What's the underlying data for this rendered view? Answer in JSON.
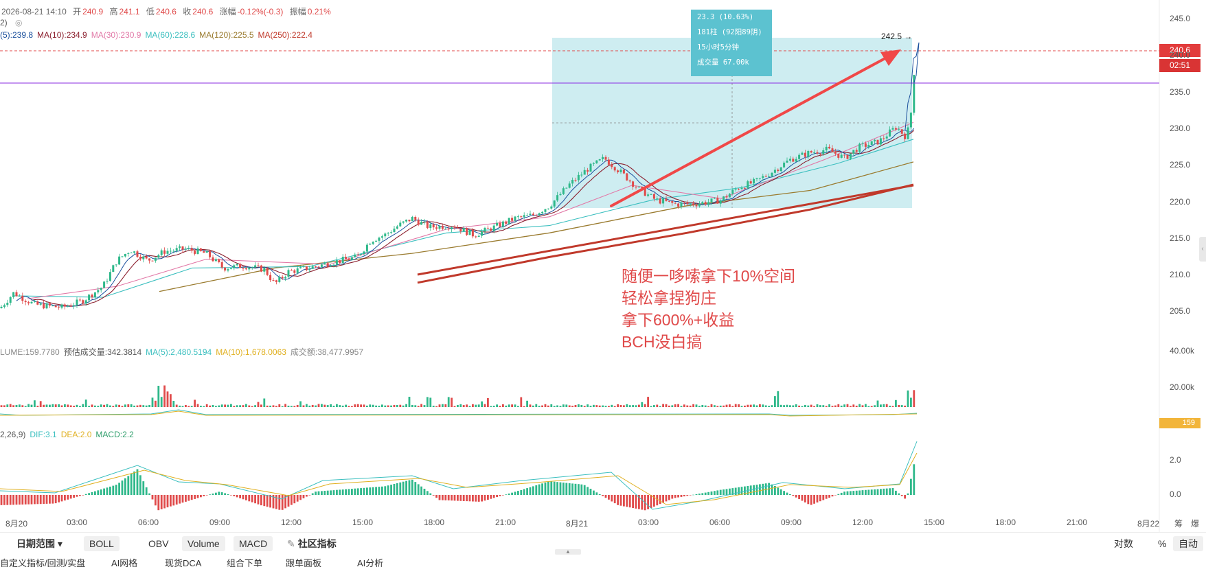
{
  "header": {
    "datetime": "2026-08-21 14:10",
    "open_label": "开",
    "open": "240.9",
    "high_label": "高",
    "high": "241.1",
    "low_label": "低",
    "low": "240.6",
    "close_label": "收",
    "close": "240.6",
    "change_label": "涨幅",
    "change": "-0.12%(-0.3)",
    "amplitude_label": "振幅",
    "amplitude": "0.21%",
    "sub_label": "2)"
  },
  "ma_legend": [
    {
      "text": "(5):239.8",
      "color": "#1a4f9c"
    },
    {
      "text": "MA(10):234.9",
      "color": "#8b1e2d"
    },
    {
      "text": "MA(30):230.9",
      "color": "#e27aa8"
    },
    {
      "text": "MA(60):228.6",
      "color": "#3bbfbf"
    },
    {
      "text": "MA(120):225.5",
      "color": "#9a7b2f"
    },
    {
      "text": "MA(250):222.4",
      "color": "#c0392b"
    }
  ],
  "volume_legend": [
    {
      "text": "LUME:159.7780",
      "color": "#888888"
    },
    {
      "text": "预估成交量:342.3814",
      "color": "#555555"
    },
    {
      "text": "MA(5):2,480.5194",
      "color": "#3bbfbf"
    },
    {
      "text": "MA(10):1,678.0063",
      "color": "#e0b020"
    },
    {
      "text": "成交额:38,477.9957",
      "color": "#888888"
    }
  ],
  "macd_legend": [
    {
      "text": "2,26,9)",
      "color": "#555555"
    },
    {
      "text": "DIF:3.1",
      "color": "#3bbfbf"
    },
    {
      "text": "DEA:2.0",
      "color": "#e0b020"
    },
    {
      "text": "MACD:2.2",
      "color": "#2e9e6b"
    }
  ],
  "tooltip": {
    "line1": "23.3 (10.63%)",
    "line2": "181柱 (92阳89阴)",
    "line3": "15小时5分钟",
    "line4": "成交量 67.00k"
  },
  "peak_label": "242.5 →",
  "price_tag": "240.6",
  "countdown_tag": "02:51",
  "volume_tag": "159",
  "annotation": [
    "随便一哆嗦拿下10%空间",
    "轻松拿捏狗庄",
    "拿下600%+收益",
    "BCH没白搞"
  ],
  "toolbar": {
    "date_range": "日期范围 ▾",
    "boll": "BOLL",
    "obv": "OBV",
    "volume": "Volume",
    "macd": "MACD",
    "community": "社区指标",
    "log": "对数",
    "percent": "%",
    "auto": "自动"
  },
  "bottom_tabs": [
    "自定义指标/回测/实盘",
    "AI网格",
    "现货DCA",
    "组合下单",
    "跟单面板",
    "AI分析"
  ],
  "colors": {
    "up": "#2eb88a",
    "down": "#e04a4a",
    "box": "#5cc2d0",
    "arrow": "#f04848",
    "hline": "#8a2be2"
  },
  "chart_data": {
    "type": "candlestick",
    "title": "",
    "xlabel": "",
    "ylabel": "",
    "ylim": [
      203,
      246
    ],
    "y_ticks": [
      "245.0",
      "240.0",
      "235.0",
      "230.0",
      "225.0",
      "220.0",
      "215.0",
      "210.0",
      "205.0"
    ],
    "x_ticks": [
      "8月20",
      "03:00",
      "06:00",
      "09:00",
      "12:00",
      "15:00",
      "18:00",
      "21:00",
      "8月21",
      "03:00",
      "06:00",
      "09:00",
      "12:00",
      "15:00",
      "18:00",
      "21:00",
      "8月22"
    ],
    "right_axis_extra": [
      "筹",
      "爆"
    ],
    "close_path": [
      [
        0,
        205.5
      ],
      [
        20,
        207.6
      ],
      [
        50,
        206.0
      ],
      [
        90,
        205.6
      ],
      [
        120,
        206.5
      ],
      [
        150,
        208.5
      ],
      [
        170,
        212.0
      ],
      [
        190,
        213.5
      ],
      [
        215,
        212.0
      ],
      [
        240,
        213.3
      ],
      [
        270,
        213.6
      ],
      [
        300,
        213.0
      ],
      [
        325,
        211.0
      ],
      [
        355,
        211.3
      ],
      [
        385,
        210.8
      ],
      [
        400,
        208.8
      ],
      [
        420,
        210.5
      ],
      [
        450,
        211.0
      ],
      [
        485,
        211.8
      ],
      [
        520,
        212.5
      ],
      [
        540,
        214.8
      ],
      [
        560,
        215.5
      ],
      [
        580,
        216.8
      ],
      [
        600,
        217.8
      ],
      [
        625,
        216.6
      ],
      [
        660,
        216.8
      ],
      [
        690,
        215.5
      ],
      [
        720,
        216.6
      ],
      [
        750,
        217.8
      ],
      [
        775,
        218.2
      ],
      [
        800,
        219.5
      ],
      [
        830,
        222.5
      ],
      [
        855,
        224.5
      ],
      [
        880,
        226.0
      ],
      [
        905,
        224.0
      ],
      [
        930,
        221.8
      ],
      [
        955,
        220.3
      ],
      [
        985,
        219.7
      ],
      [
        1015,
        219.8
      ],
      [
        1050,
        220.3
      ],
      [
        1075,
        222.0
      ],
      [
        1100,
        222.8
      ],
      [
        1125,
        224.2
      ],
      [
        1150,
        225.8
      ],
      [
        1180,
        226.8
      ],
      [
        1205,
        227.2
      ],
      [
        1230,
        226.0
      ],
      [
        1250,
        227.5
      ],
      [
        1280,
        228.3
      ],
      [
        1305,
        230.3
      ],
      [
        1318,
        229.0
      ],
      [
        1325,
        230.5
      ],
      [
        1331,
        238.0
      ],
      [
        1334,
        237.0
      ],
      [
        1337,
        241.5
      ]
    ],
    "series": [
      {
        "name": "MA(250)",
        "color": "#c0392b",
        "width": 3,
        "points": [
          [
            608,
            209.0
          ],
          [
            800,
            212.5
          ],
          [
            1000,
            215.8
          ],
          [
            1180,
            219.0
          ],
          [
            1330,
            222.4
          ]
        ]
      },
      {
        "name": "MA(120)",
        "color": "#9a7b2f",
        "width": 1.3,
        "points": [
          [
            232,
            207.8
          ],
          [
            400,
            211.0
          ],
          [
            600,
            213.0
          ],
          [
            800,
            215.8
          ],
          [
            1000,
            219.5
          ],
          [
            1180,
            221.6
          ],
          [
            1330,
            225.5
          ]
        ]
      },
      {
        "name": "MA(60)",
        "color": "#3bbfbf",
        "width": 1.1,
        "points": [
          [
            20,
            207.2
          ],
          [
            150,
            207.0
          ],
          [
            280,
            211.0
          ],
          [
            450,
            211.2
          ],
          [
            650,
            215.8
          ],
          [
            800,
            216.8
          ],
          [
            950,
            220.3
          ],
          [
            1080,
            222.0
          ],
          [
            1220,
            225.3
          ],
          [
            1330,
            228.6
          ]
        ]
      },
      {
        "name": "MA(30)",
        "color": "#e27aa8",
        "width": 1.1,
        "points": [
          [
            40,
            206.8
          ],
          [
            170,
            208.5
          ],
          [
            300,
            212.2
          ],
          [
            480,
            211.5
          ],
          [
            650,
            216.3
          ],
          [
            800,
            218.0
          ],
          [
            920,
            222.3
          ],
          [
            1050,
            220.5
          ],
          [
            1200,
            225.8
          ],
          [
            1330,
            230.9
          ]
        ]
      }
    ],
    "volume": {
      "ylim": [
        0,
        46000
      ],
      "y_ticks": [
        "40.00k",
        "20.00k"
      ]
    },
    "macd": {
      "ylim": [
        -1.2,
        4.2
      ],
      "y_ticks": [
        "2.0",
        "0.0"
      ]
    }
  }
}
